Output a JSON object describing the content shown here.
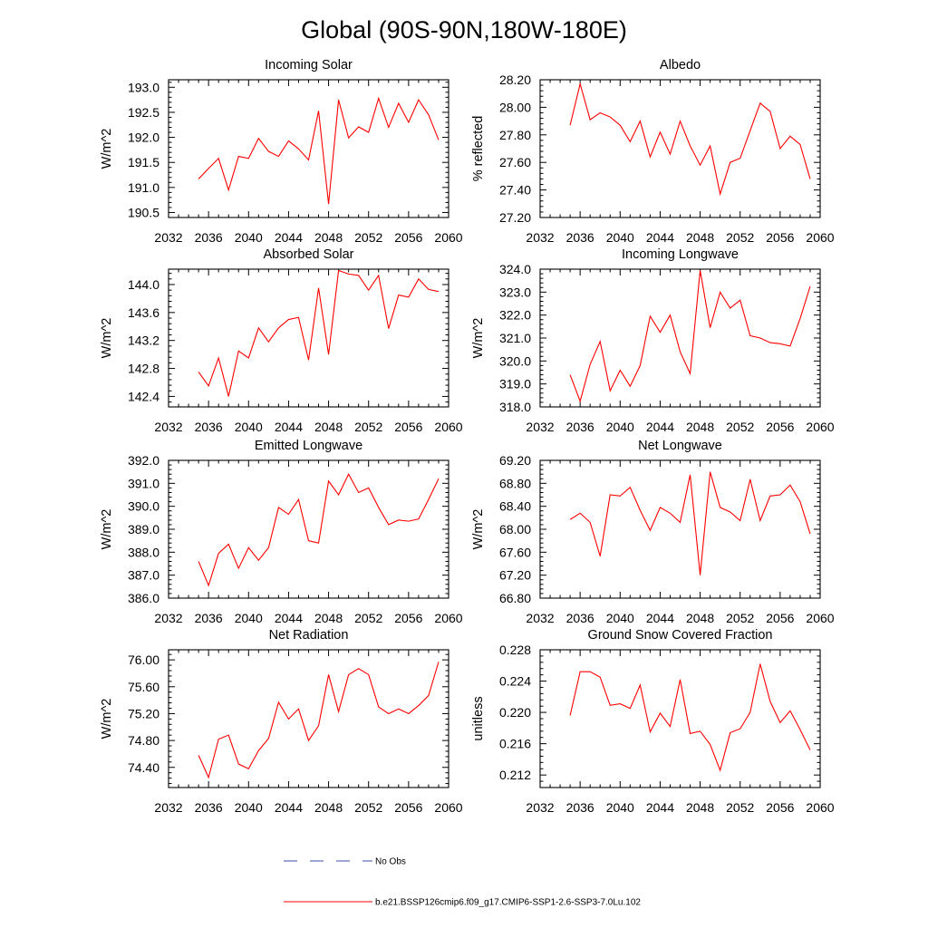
{
  "figure": {
    "title": "Global (90S-90N,180W-180E)"
  },
  "legend": {
    "obs_label": "No Obs",
    "model_label": "b.e21.BSSP126cmip6.f09_g17.CMIP6-SSP1-2.6-SSP3-7.0Lu.102",
    "model_color": "#ff0000",
    "obs_color": "#3a4fa8"
  },
  "chart_data": [
    {
      "type": "line",
      "title": "Incoming Solar",
      "ylabel": "W/m^2",
      "xlim": [
        2032,
        2060
      ],
      "ylim": [
        190.4,
        193.15
      ],
      "xticks": [
        2032,
        2036,
        2040,
        2044,
        2048,
        2052,
        2056,
        2060
      ],
      "xtick_labels": [
        "2032",
        "2036",
        "2040",
        "2044",
        "2048",
        "2052",
        "2056",
        "2060"
      ],
      "yticks": [
        190.5,
        191.0,
        191.5,
        192.0,
        192.5,
        193.0
      ],
      "ytick_labels": [
        "190.5",
        "191.0",
        "191.5",
        "192.0",
        "192.5",
        "193.0"
      ],
      "x": [
        2035,
        2036,
        2037,
        2038,
        2039,
        2040,
        2041,
        2042,
        2043,
        2044,
        2045,
        2046,
        2047,
        2048,
        2049,
        2050,
        2051,
        2052,
        2053,
        2054,
        2055,
        2056,
        2057,
        2058,
        2059
      ],
      "series": [
        {
          "values": [
            191.17,
            191.38,
            191.58,
            190.95,
            191.62,
            191.58,
            191.98,
            191.72,
            191.62,
            191.93,
            191.77,
            191.55,
            192.53,
            190.67,
            192.75,
            191.99,
            192.21,
            192.1,
            192.78,
            192.2,
            192.68,
            192.3,
            192.75,
            192.45,
            191.95
          ]
        }
      ]
    },
    {
      "type": "line",
      "title": "Albedo",
      "ylabel": "% reflected",
      "xlim": [
        2032,
        2060
      ],
      "ylim": [
        27.2,
        28.2
      ],
      "xticks": [
        2032,
        2036,
        2040,
        2044,
        2048,
        2052,
        2056,
        2060
      ],
      "xtick_labels": [
        "2032",
        "2036",
        "2040",
        "2044",
        "2048",
        "2052",
        "2056",
        "2060"
      ],
      "yticks": [
        27.2,
        27.4,
        27.6,
        27.8,
        28.0,
        28.2
      ],
      "ytick_labels": [
        "27.20",
        "27.40",
        "27.60",
        "27.80",
        "28.00",
        "28.20"
      ],
      "x": [
        2035,
        2036,
        2037,
        2038,
        2039,
        2040,
        2041,
        2042,
        2043,
        2044,
        2045,
        2046,
        2047,
        2048,
        2049,
        2050,
        2051,
        2052,
        2053,
        2054,
        2055,
        2056,
        2057,
        2058,
        2059
      ],
      "series": [
        {
          "values": [
            27.87,
            28.17,
            27.91,
            27.96,
            27.93,
            27.87,
            27.75,
            27.9,
            27.64,
            27.82,
            27.66,
            27.9,
            27.72,
            27.58,
            27.72,
            27.37,
            27.6,
            27.63,
            27.83,
            28.03,
            27.97,
            27.7,
            27.79,
            27.73,
            27.48
          ]
        }
      ]
    },
    {
      "type": "line",
      "title": "Absorbed Solar",
      "ylabel": "W/m^2",
      "xlim": [
        2032,
        2060
      ],
      "ylim": [
        142.25,
        144.22
      ],
      "xticks": [
        2032,
        2036,
        2040,
        2044,
        2048,
        2052,
        2056,
        2060
      ],
      "xtick_labels": [
        "2032",
        "2036",
        "2040",
        "2044",
        "2048",
        "2052",
        "2056",
        "2060"
      ],
      "yticks": [
        142.4,
        142.8,
        143.2,
        143.6,
        144.0
      ],
      "ytick_labels": [
        "142.4",
        "142.8",
        "143.2",
        "143.6",
        "144.0"
      ],
      "x": [
        2035,
        2036,
        2037,
        2038,
        2039,
        2040,
        2041,
        2042,
        2043,
        2044,
        2045,
        2046,
        2047,
        2048,
        2049,
        2050,
        2051,
        2052,
        2053,
        2054,
        2055,
        2056,
        2057,
        2058,
        2059
      ],
      "series": [
        {
          "values": [
            142.75,
            142.55,
            142.95,
            142.4,
            143.05,
            142.95,
            143.38,
            143.18,
            143.38,
            143.5,
            143.53,
            142.92,
            143.95,
            143.0,
            144.2,
            144.15,
            144.13,
            143.92,
            144.13,
            143.37,
            143.85,
            143.82,
            144.08,
            143.93,
            143.9
          ]
        }
      ]
    },
    {
      "type": "line",
      "title": "Incoming Longwave",
      "ylabel": "W/m^2",
      "xlim": [
        2032,
        2060
      ],
      "ylim": [
        318.0,
        324.0
      ],
      "xticks": [
        2032,
        2036,
        2040,
        2044,
        2048,
        2052,
        2056,
        2060
      ],
      "xtick_labels": [
        "2032",
        "2036",
        "2040",
        "2044",
        "2048",
        "2052",
        "2056",
        "2060"
      ],
      "yticks": [
        318.0,
        319.0,
        320.0,
        321.0,
        322.0,
        323.0,
        324.0
      ],
      "ytick_labels": [
        "318.0",
        "319.0",
        "320.0",
        "321.0",
        "322.0",
        "323.0",
        "324.0"
      ],
      "x": [
        2035,
        2036,
        2037,
        2038,
        2039,
        2040,
        2041,
        2042,
        2043,
        2044,
        2045,
        2046,
        2047,
        2048,
        2049,
        2050,
        2051,
        2052,
        2053,
        2054,
        2055,
        2056,
        2057,
        2058,
        2059
      ],
      "series": [
        {
          "values": [
            319.4,
            318.25,
            319.85,
            320.85,
            318.7,
            319.6,
            318.9,
            319.8,
            321.95,
            321.25,
            322.0,
            320.4,
            319.45,
            323.95,
            321.45,
            323.0,
            322.3,
            322.65,
            321.1,
            321.0,
            320.8,
            320.75,
            320.65,
            321.85,
            323.25
          ]
        }
      ]
    },
    {
      "type": "line",
      "title": "Emitted Longwave",
      "ylabel": "W/m^2",
      "xlim": [
        2032,
        2060
      ],
      "ylim": [
        386.0,
        392.0
      ],
      "xticks": [
        2032,
        2036,
        2040,
        2044,
        2048,
        2052,
        2056,
        2060
      ],
      "xtick_labels": [
        "2032",
        "2036",
        "2040",
        "2044",
        "2048",
        "2052",
        "2056",
        "2060"
      ],
      "yticks": [
        386.0,
        387.0,
        388.0,
        389.0,
        390.0,
        391.0,
        392.0
      ],
      "ytick_labels": [
        "386.0",
        "387.0",
        "388.0",
        "389.0",
        "390.0",
        "391.0",
        "392.0"
      ],
      "x": [
        2035,
        2036,
        2037,
        2038,
        2039,
        2040,
        2041,
        2042,
        2043,
        2044,
        2045,
        2046,
        2047,
        2048,
        2049,
        2050,
        2051,
        2052,
        2053,
        2054,
        2055,
        2056,
        2057,
        2058,
        2059
      ],
      "series": [
        {
          "values": [
            387.6,
            386.55,
            387.95,
            388.35,
            387.3,
            388.2,
            387.65,
            388.2,
            389.95,
            389.65,
            390.3,
            388.5,
            388.4,
            391.1,
            390.5,
            391.4,
            390.6,
            390.8,
            389.95,
            389.2,
            389.4,
            389.35,
            389.45,
            390.3,
            391.2
          ]
        }
      ]
    },
    {
      "type": "line",
      "title": "Net Longwave",
      "ylabel": "W/m^2",
      "xlim": [
        2032,
        2060
      ],
      "ylim": [
        66.8,
        69.2
      ],
      "xticks": [
        2032,
        2036,
        2040,
        2044,
        2048,
        2052,
        2056,
        2060
      ],
      "xtick_labels": [
        "2032",
        "2036",
        "2040",
        "2044",
        "2048",
        "2052",
        "2056",
        "2060"
      ],
      "yticks": [
        66.8,
        67.2,
        67.6,
        68.0,
        68.4,
        68.8,
        69.2
      ],
      "ytick_labels": [
        "66.80",
        "67.20",
        "67.60",
        "68.00",
        "68.40",
        "68.80",
        "69.20"
      ],
      "x": [
        2035,
        2036,
        2037,
        2038,
        2039,
        2040,
        2041,
        2042,
        2043,
        2044,
        2045,
        2046,
        2047,
        2048,
        2049,
        2050,
        2051,
        2052,
        2053,
        2054,
        2055,
        2056,
        2057,
        2058,
        2059
      ],
      "series": [
        {
          "values": [
            68.17,
            68.28,
            68.12,
            67.53,
            68.6,
            68.58,
            68.73,
            68.33,
            67.98,
            68.38,
            68.28,
            68.12,
            68.95,
            67.2,
            69.0,
            68.38,
            68.3,
            68.15,
            68.87,
            68.15,
            68.58,
            68.6,
            68.77,
            68.48,
            67.92
          ]
        }
      ]
    },
    {
      "type": "line",
      "title": "Net Radiation",
      "ylabel": "W/m^2",
      "xlim": [
        2032,
        2060
      ],
      "ylim": [
        74.1,
        76.15
      ],
      "xticks": [
        2032,
        2036,
        2040,
        2044,
        2048,
        2052,
        2056,
        2060
      ],
      "xtick_labels": [
        "2032",
        "2036",
        "2040",
        "2044",
        "2048",
        "2052",
        "2056",
        "2060"
      ],
      "yticks": [
        74.4,
        74.8,
        75.2,
        75.6,
        76.0
      ],
      "ytick_labels": [
        "74.40",
        "74.80",
        "75.20",
        "75.60",
        "76.00"
      ],
      "x": [
        2035,
        2036,
        2037,
        2038,
        2039,
        2040,
        2041,
        2042,
        2043,
        2044,
        2045,
        2046,
        2047,
        2048,
        2049,
        2050,
        2051,
        2052,
        2053,
        2054,
        2055,
        2056,
        2057,
        2058,
        2059
      ],
      "series": [
        {
          "values": [
            74.58,
            74.25,
            74.82,
            74.88,
            74.45,
            74.38,
            74.65,
            74.83,
            75.37,
            75.12,
            75.27,
            74.8,
            75.02,
            75.78,
            75.23,
            75.78,
            75.87,
            75.78,
            75.3,
            75.2,
            75.27,
            75.2,
            75.32,
            75.47,
            75.97
          ]
        }
      ]
    },
    {
      "type": "line",
      "title": "Ground Snow Covered Fraction",
      "ylabel": "unitless",
      "xlim": [
        2032,
        2060
      ],
      "ylim": [
        0.2104,
        0.228
      ],
      "xticks": [
        2032,
        2036,
        2040,
        2044,
        2048,
        2052,
        2056,
        2060
      ],
      "xtick_labels": [
        "2032",
        "2036",
        "2040",
        "2044",
        "2048",
        "2052",
        "2056",
        "2060"
      ],
      "yticks": [
        0.212,
        0.216,
        0.22,
        0.224,
        0.228
      ],
      "ytick_labels": [
        "0.212",
        "0.216",
        "0.220",
        "0.224",
        "0.228"
      ],
      "x": [
        2035,
        2036,
        2037,
        2038,
        2039,
        2040,
        2041,
        2042,
        2043,
        2044,
        2045,
        2046,
        2047,
        2048,
        2049,
        2050,
        2051,
        2052,
        2053,
        2054,
        2055,
        2056,
        2057,
        2058,
        2059
      ],
      "series": [
        {
          "values": [
            0.2196,
            0.2252,
            0.2252,
            0.2245,
            0.2209,
            0.2211,
            0.2205,
            0.2235,
            0.2175,
            0.2199,
            0.2182,
            0.2242,
            0.2173,
            0.2176,
            0.2159,
            0.2126,
            0.2174,
            0.2179,
            0.22,
            0.2262,
            0.2214,
            0.2187,
            0.2202,
            0.2178,
            0.2152
          ]
        }
      ]
    }
  ]
}
